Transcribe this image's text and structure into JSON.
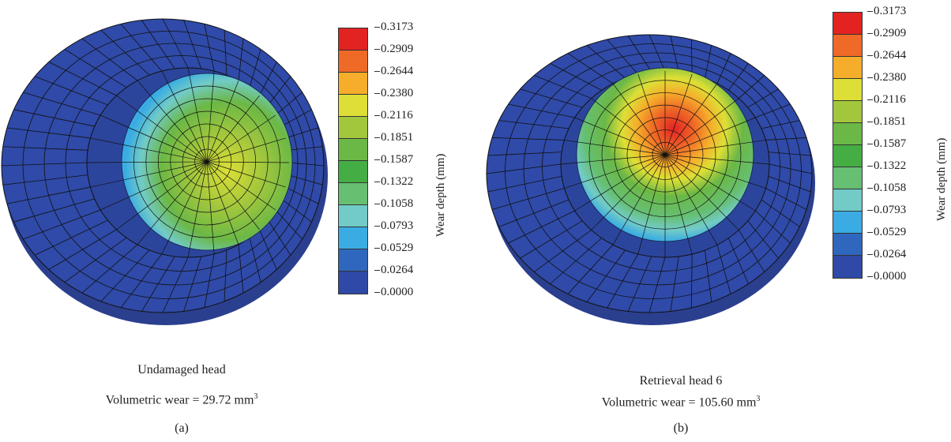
{
  "colorbar": {
    "label": "Wear depth (mm)",
    "ticks": [
      "0.3173",
      "0.2909",
      "0.2644",
      "0.2380",
      "0.2116",
      "0.1851",
      "0.1587",
      "0.1322",
      "0.1058",
      "0.0793",
      "0.0529",
      "0.0264",
      "0.0000"
    ],
    "colors": [
      "#e32222",
      "#ef6a27",
      "#f5ad2b",
      "#dddf36",
      "#a2c73d",
      "#6bb846",
      "#44ae44",
      "#66bf72",
      "#72cbc6",
      "#3aace3",
      "#2f67be",
      "#2e4aa6"
    ]
  },
  "panels": [
    {
      "title": "Undamaged head",
      "wear_label": "Volumetric wear = 29.72",
      "wear_unit": "mm",
      "wear_exp": "3",
      "tag": "(a)"
    },
    {
      "title": "Retrieval head 6",
      "wear_label": "Volumetric wear = 105.60",
      "wear_unit": "mm",
      "wear_exp": "3",
      "tag": "(b)"
    }
  ]
}
